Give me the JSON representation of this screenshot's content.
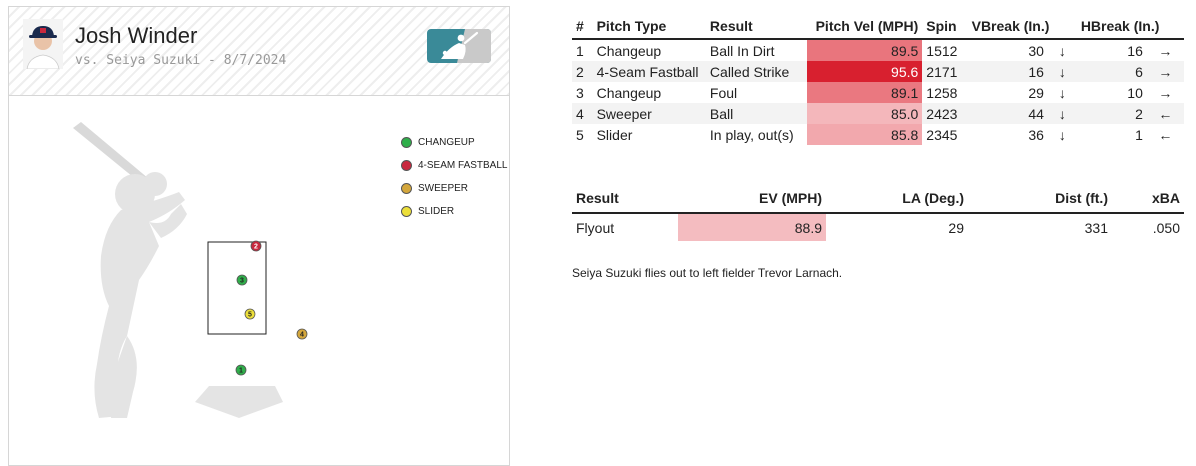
{
  "header": {
    "pitcher_name": "Josh Winder",
    "matchup": "vs. Seiya Suzuki - 8/7/2024"
  },
  "legend": [
    {
      "label": "CHANGEUP",
      "color": "#2fae4a"
    },
    {
      "label": "4-SEAM FASTBALL",
      "color": "#c8283e"
    },
    {
      "label": "SWEEPER",
      "color": "#d4a73c"
    },
    {
      "label": "SLIDER",
      "color": "#ecdf3a"
    }
  ],
  "pitch_markers": [
    {
      "number": "1",
      "pitch": "Changeup",
      "color": "#2fae4a"
    },
    {
      "number": "2",
      "pitch": "4-Seam Fastball",
      "color": "#c8283e"
    },
    {
      "number": "3",
      "pitch": "Changeup",
      "color": "#2fae4a"
    },
    {
      "number": "4",
      "pitch": "Sweeper",
      "color": "#d4a73c"
    },
    {
      "number": "5",
      "pitch": "Slider",
      "color": "#ecdf3a"
    }
  ],
  "pitch_table": {
    "headers": [
      "#",
      "Pitch Type",
      "Result",
      "Pitch Vel (MPH)",
      "Spin",
      "VBreak (In.)",
      "HBreak (In.)"
    ],
    "rows": [
      {
        "num": "1",
        "type": "Changeup",
        "result": "Ball In Dirt",
        "vel": "89.5",
        "vel_bg": "#e9757d",
        "vel_fg": "#222222",
        "spin": "1512",
        "vbreak": "30",
        "v_arrow": "↓",
        "hbreak": "16",
        "h_arrow": "→"
      },
      {
        "num": "2",
        "type": "4-Seam Fastball",
        "result": "Called Strike",
        "vel": "95.6",
        "vel_bg": "#d8202f",
        "vel_fg": "#ffffff",
        "spin": "2171",
        "vbreak": "16",
        "v_arrow": "↓",
        "hbreak": "6",
        "h_arrow": "→"
      },
      {
        "num": "3",
        "type": "Changeup",
        "result": "Foul",
        "vel": "89.1",
        "vel_bg": "#ea7880",
        "vel_fg": "#222222",
        "spin": "1258",
        "vbreak": "29",
        "v_arrow": "↓",
        "hbreak": "10",
        "h_arrow": "→"
      },
      {
        "num": "4",
        "type": "Sweeper",
        "result": "Ball",
        "vel": "85.0",
        "vel_bg": "#f4b7bb",
        "vel_fg": "#222222",
        "spin": "2423",
        "vbreak": "44",
        "v_arrow": "↓",
        "hbreak": "2",
        "h_arrow": "←"
      },
      {
        "num": "5",
        "type": "Slider",
        "result": "In play, out(s)",
        "vel": "85.8",
        "vel_bg": "#f2a8ad",
        "vel_fg": "#222222",
        "spin": "2345",
        "vbreak": "36",
        "v_arrow": "↓",
        "hbreak": "1",
        "h_arrow": "←"
      }
    ]
  },
  "result_table": {
    "headers": [
      "Result",
      "EV (MPH)",
      "LA (Deg.)",
      "Dist (ft.)",
      "xBA"
    ],
    "row": {
      "result": "Flyout",
      "ev": "88.9",
      "ev_bg": "#f4bcc0",
      "la": "29",
      "dist": "331",
      "xba": ".050"
    }
  },
  "description": "Seiya Suzuki flies out to left fielder Trevor Larnach."
}
